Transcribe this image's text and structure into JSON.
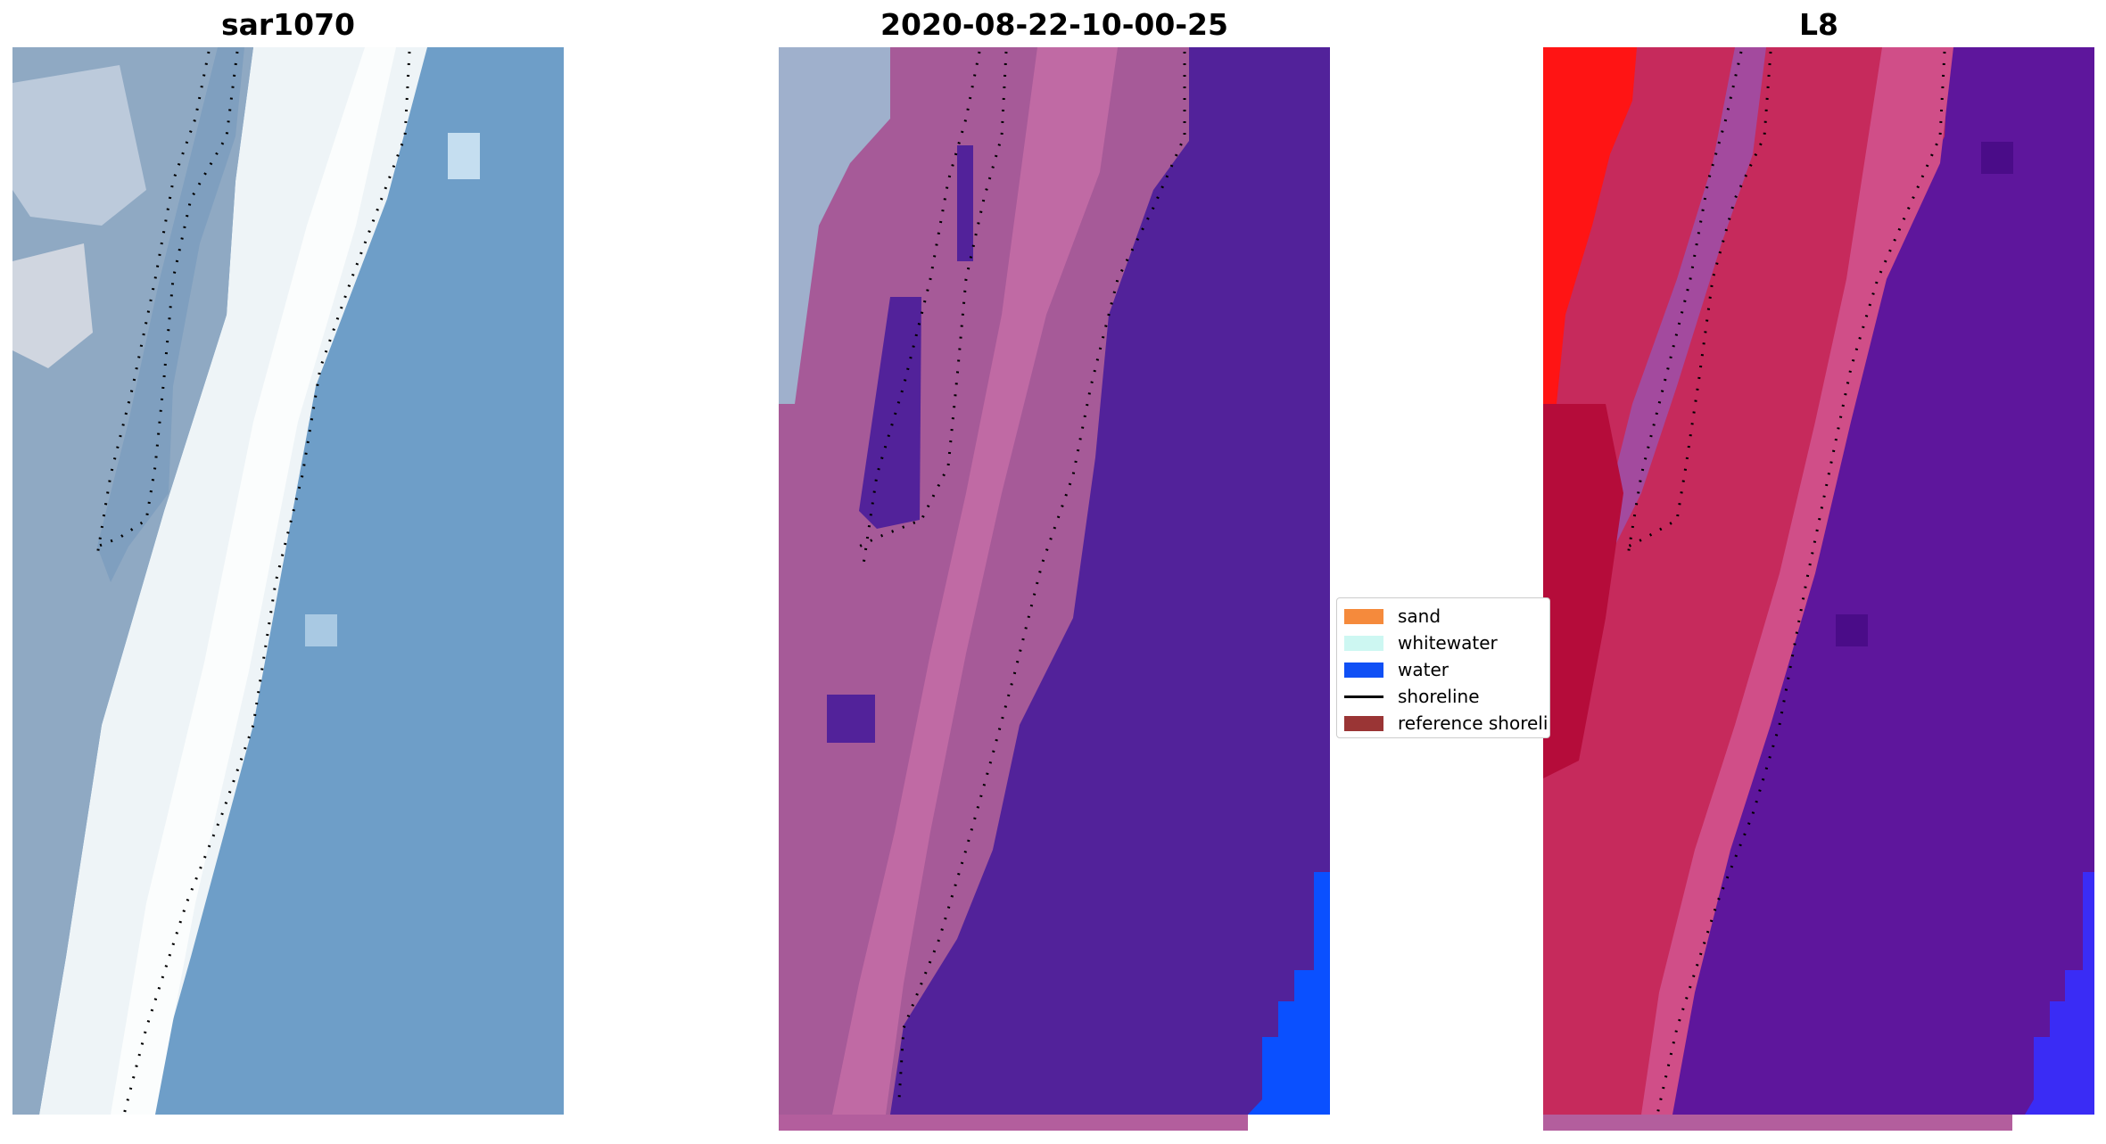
{
  "panels": [
    {
      "title": "sar1070"
    },
    {
      "title": "2020-08-22-10-00-25"
    },
    {
      "title": "L8"
    }
  ],
  "legend": {
    "items": [
      {
        "label": "sand",
        "color": "#f58a3c",
        "kind": "patch"
      },
      {
        "label": "whitewater",
        "color": "#cdf7f2",
        "kind": "patch"
      },
      {
        "label": "water",
        "color": "#1050f5",
        "kind": "patch"
      },
      {
        "label": "shoreline",
        "color": "#000000",
        "kind": "line"
      },
      {
        "label": "reference shoreline",
        "color": "#9a3535",
        "kind": "patch"
      }
    ]
  },
  "colors": {
    "sea_rgb": "#6e9ec8",
    "beach_rgb": "#f2f6f8",
    "land_rgb": "#8faac4",
    "class_land": "#a85a98",
    "class_water": "#52229a",
    "class_water_bright": "#0a50ff",
    "ndwi_land": "#c62a5c",
    "ndwi_water": "#5e169c",
    "ndwi_water_bright": "#3a2cf5",
    "ndwi_hot": "#ff1414"
  }
}
